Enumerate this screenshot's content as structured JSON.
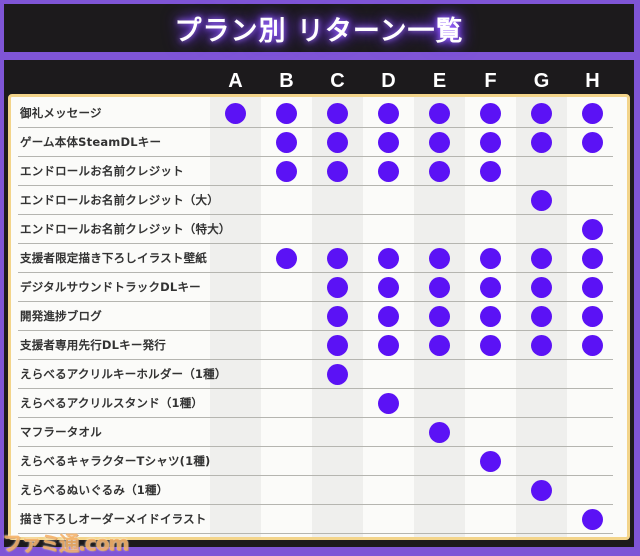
{
  "header": {
    "title": "プラン別 リターン一覧"
  },
  "colors": {
    "accent": "#5b12f5",
    "frame": "#7f55d6",
    "panel_border": "#f3d48a",
    "background": "#1c1a1c"
  },
  "columns": [
    "A",
    "B",
    "C",
    "D",
    "E",
    "F",
    "G",
    "H"
  ],
  "rows": [
    {
      "label": "御礼メッセージ",
      "marks": [
        1,
        1,
        1,
        1,
        1,
        1,
        1,
        1
      ]
    },
    {
      "label": "ゲーム本体SteamDLキー",
      "marks": [
        0,
        1,
        1,
        1,
        1,
        1,
        1,
        1
      ]
    },
    {
      "label": "エンドロールお名前クレジット",
      "marks": [
        0,
        1,
        1,
        1,
        1,
        1,
        0,
        0
      ]
    },
    {
      "label": "エンドロールお名前クレジット（大）",
      "marks": [
        0,
        0,
        0,
        0,
        0,
        0,
        1,
        0
      ]
    },
    {
      "label": "エンドロールお名前クレジット（特大）",
      "marks": [
        0,
        0,
        0,
        0,
        0,
        0,
        0,
        1
      ]
    },
    {
      "label": "支援者限定描き下ろしイラスト壁紙",
      "marks": [
        0,
        1,
        1,
        1,
        1,
        1,
        1,
        1
      ]
    },
    {
      "label": "デジタルサウンドトラックDLキー",
      "marks": [
        0,
        0,
        1,
        1,
        1,
        1,
        1,
        1
      ]
    },
    {
      "label": "開発進捗ブログ",
      "marks": [
        0,
        0,
        1,
        1,
        1,
        1,
        1,
        1
      ]
    },
    {
      "label": "支援者専用先行DLキー発行",
      "marks": [
        0,
        0,
        1,
        1,
        1,
        1,
        1,
        1
      ]
    },
    {
      "label": "えらべるアクリルキーホルダー（1種）",
      "marks": [
        0,
        0,
        1,
        0,
        0,
        0,
        0,
        0
      ]
    },
    {
      "label": "えらべるアクリルスタンド（1種）",
      "marks": [
        0,
        0,
        0,
        1,
        0,
        0,
        0,
        0
      ]
    },
    {
      "label": "マフラータオル",
      "marks": [
        0,
        0,
        0,
        0,
        1,
        0,
        0,
        0
      ]
    },
    {
      "label": "えらべるキャラクターTシャツ(1種)",
      "marks": [
        0,
        0,
        0,
        0,
        0,
        1,
        0,
        0
      ]
    },
    {
      "label": "えらべるぬいぐるみ（1種）",
      "marks": [
        0,
        0,
        0,
        0,
        0,
        0,
        1,
        0
      ]
    },
    {
      "label": "描き下ろしオーダーメイドイラスト",
      "marks": [
        0,
        0,
        0,
        0,
        0,
        0,
        0,
        1
      ]
    }
  ],
  "watermark": "ファミ通.com"
}
